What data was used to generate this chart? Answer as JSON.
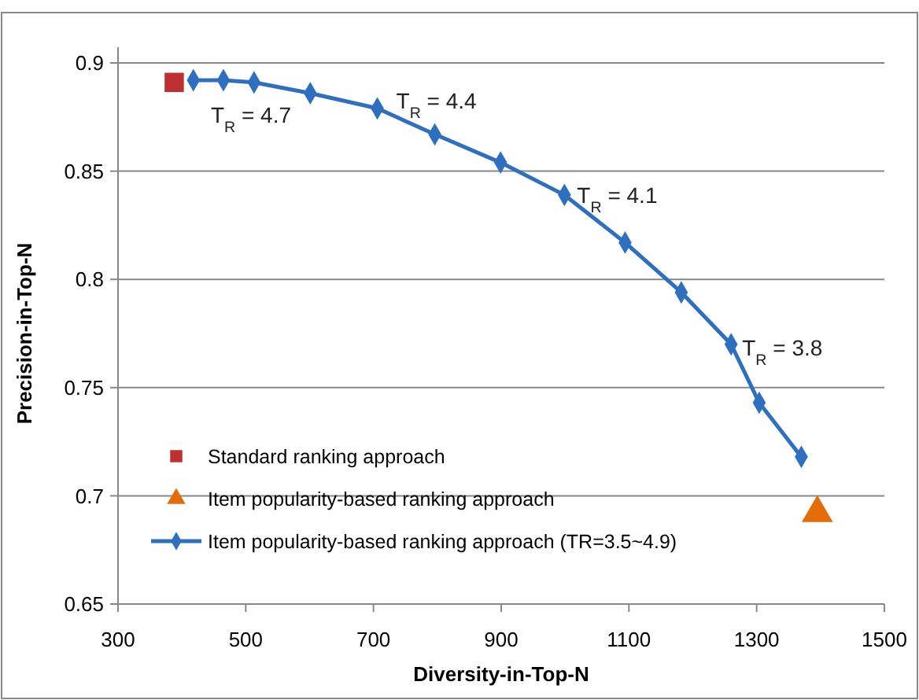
{
  "chart_data": {
    "type": "line",
    "xlabel": "Diversity-in-Top-N",
    "ylabel": "Precision-in-Top-N",
    "xlim": [
      300,
      1500
    ],
    "xticks": [
      300,
      500,
      700,
      900,
      1100,
      1300,
      1500
    ],
    "ylim": [
      0.65,
      0.9
    ],
    "yticks": [
      0.65,
      0.7,
      0.75,
      0.8,
      0.85,
      0.9
    ],
    "grid": "y",
    "legend": "bottom left",
    "series": [
      {
        "name": "Standard ranking approach",
        "type": "scatter",
        "marker": "square",
        "color": "#be3030",
        "x": [
          388
        ],
        "values": [
          0.891
        ]
      },
      {
        "name": "Item popularity-based ranking approach",
        "type": "scatter",
        "marker": "triangle",
        "color": "#e46c0a",
        "x": [
          1395
        ],
        "values": [
          0.692
        ]
      },
      {
        "name": "Item popularity-based ranking approach (TR=3.5~4.9)",
        "marker": "diamond",
        "line_style": "solid",
        "color": "#2f6fbf",
        "x": [
          418,
          465,
          513,
          601,
          706,
          796,
          899,
          999,
          1094,
          1182,
          1260,
          1304,
          1370
        ],
        "values": [
          0.892,
          0.892,
          0.891,
          0.886,
          0.879,
          0.867,
          0.854,
          0.839,
          0.817,
          0.794,
          0.77,
          0.743,
          0.718
        ]
      }
    ],
    "annotations": [
      {
        "text": "T$_{R}$ = 4.7",
        "x": 465,
        "y": 0.892
      },
      {
        "text": "T$_{R}$ = 4.4",
        "x": 706,
        "y": 0.879
      },
      {
        "text": "T$_{R}$ = 4.1",
        "x": 999,
        "y": 0.839
      },
      {
        "text": "T$_{R}$ = 3.8",
        "x": 1260,
        "y": 0.77
      }
    ]
  }
}
